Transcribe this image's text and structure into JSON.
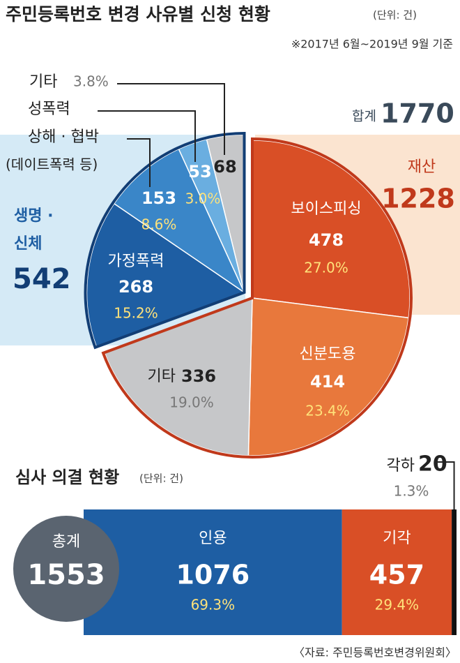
{
  "chart_data": [
    {
      "type": "pie",
      "title": "주민등록번호 변경 사유별 신청 현황",
      "unit": "(단위: 건)",
      "subtitle": "※2017년 6월~2019년 9월 기준",
      "total_label": "합계",
      "total": 1770,
      "categories": [
        "보이스피싱",
        "신분도용",
        "기타",
        "가정폭력",
        "상해 · 협박",
        "성폭력",
        "기타"
      ],
      "notes": [
        null,
        null,
        null,
        null,
        "(데이트폭력 등)",
        null,
        null
      ],
      "values": [
        478,
        414,
        336,
        268,
        153,
        53,
        68
      ],
      "percents": [
        27,
        23.4,
        19,
        15.2,
        8.6,
        3,
        3.8
      ],
      "percent_labels": [
        "27.0%",
        "23.4%",
        "19.0%",
        "15.2%",
        "8.6%",
        "3.0%",
        "3.8%"
      ],
      "colors": [
        "#d94f26",
        "#e8783c",
        "#c6c7c9",
        "#1e5ea3",
        "#3a86c8",
        "#6aaee0",
        "#c6c7c9"
      ],
      "groups": [
        {
          "name": "재산",
          "value": 1228,
          "color": "#c0391b"
        },
        {
          "name": "생명 · 신체",
          "value": 542,
          "color": "#123e75"
        }
      ]
    },
    {
      "type": "bar",
      "orientation": "horizontal",
      "stacked": true,
      "title": "심사 의결 현황",
      "unit": "(단위: 건)",
      "total_label": "총계",
      "total": 1553,
      "series": [
        {
          "name": "인용",
          "color": "#1e5ea3",
          "values": [
            1076
          ],
          "percents": [
            69.3
          ],
          "percent_labels": [
            "69.3%"
          ]
        },
        {
          "name": "기각",
          "color": "#d94f26",
          "values": [
            457
          ],
          "percents": [
            29.4
          ],
          "percent_labels": [
            "29.4%"
          ]
        },
        {
          "name": "각하",
          "color": "#111111",
          "values": [
            20
          ],
          "percents": [
            1.3
          ],
          "percent_labels": [
            "1.3%"
          ]
        }
      ],
      "source": "〈자료: 주민등록번호변경위원회〉"
    }
  ]
}
